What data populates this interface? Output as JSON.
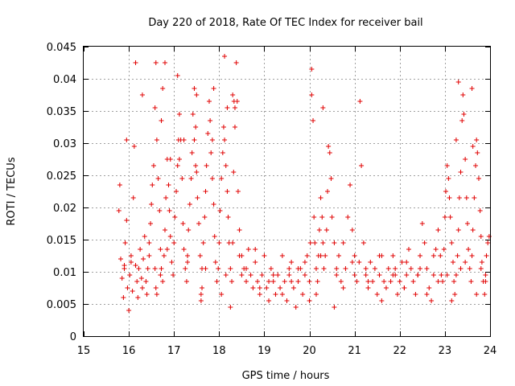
{
  "chart_data": {
    "type": "scatter",
    "title": "Day 220 of 2018, Rate Of TEC Index for receiver bail",
    "xlabel": "GPS time / hours",
    "ylabel": "ROTI / TECUs",
    "xlim": [
      15,
      24
    ],
    "ylim": [
      0,
      0.045
    ],
    "xticks": [
      15,
      16,
      17,
      18,
      19,
      20,
      21,
      22,
      23,
      24
    ],
    "xtick_labels": [
      "15",
      "16",
      "17",
      "18",
      "19",
      "20",
      "21",
      "22",
      "23",
      "24"
    ],
    "yticks": [
      0,
      0.005,
      0.01,
      0.015,
      0.02,
      0.025,
      0.03,
      0.035,
      0.04,
      0.045
    ],
    "ytick_labels": [
      "0",
      "0.005",
      "0.01",
      "0.015",
      "0.02",
      "0.025",
      "0.03",
      "0.035",
      "0.04",
      "0.045"
    ],
    "grid": true,
    "marker": "+",
    "color": "#e00000",
    "series": [
      {
        "name": "ROTI",
        "x": [
          15.78,
          15.8,
          15.82,
          15.85,
          15.88,
          15.9,
          15.92,
          15.95,
          15.97,
          16.0,
          16.02,
          16.05,
          16.08,
          16.1,
          16.12,
          16.15,
          16.18,
          16.2,
          16.22,
          16.25,
          16.28,
          16.3,
          16.32,
          16.35,
          16.38,
          16.4,
          16.42,
          16.45,
          16.48,
          16.5,
          16.52,
          16.55,
          16.58,
          16.6,
          16.62,
          16.65,
          16.68,
          16.7,
          16.72,
          16.75,
          16.78,
          16.8,
          16.82,
          16.85,
          16.88,
          16.9,
          16.92,
          16.95,
          16.98,
          17.0,
          17.02,
          17.05,
          17.08,
          17.1,
          17.12,
          17.15,
          17.18,
          17.2,
          17.22,
          17.25,
          17.28,
          17.3,
          17.32,
          17.35,
          17.38,
          17.4,
          17.42,
          17.45,
          17.48,
          17.5,
          17.52,
          17.55,
          17.58,
          17.6,
          17.62,
          17.65,
          17.68,
          17.7,
          17.72,
          17.75,
          17.78,
          17.8,
          17.82,
          17.85,
          17.88,
          17.9,
          17.92,
          17.95,
          17.98,
          18.0,
          18.02,
          18.05,
          18.08,
          18.1,
          18.12,
          18.15,
          18.18,
          18.2,
          18.22,
          18.25,
          18.28,
          18.3,
          18.32,
          18.35,
          18.38,
          18.4,
          18.42,
          18.45,
          18.5,
          18.55,
          18.6,
          18.65,
          18.7,
          18.75,
          18.8,
          18.85,
          18.9,
          18.95,
          19.0,
          19.05,
          19.1,
          19.15,
          19.2,
          19.25,
          19.3,
          19.35,
          19.4,
          19.45,
          19.5,
          19.55,
          19.6,
          19.65,
          19.7,
          19.75,
          19.8,
          19.85,
          19.9,
          19.95,
          20.0,
          20.02,
          20.05,
          20.08,
          20.1,
          20.12,
          20.15,
          20.18,
          20.2,
          20.22,
          20.25,
          20.28,
          20.3,
          20.32,
          20.35,
          20.38,
          20.4,
          20.42,
          20.45,
          20.48,
          20.5,
          20.55,
          20.6,
          20.65,
          20.7,
          20.75,
          20.8,
          20.85,
          20.9,
          20.95,
          21.0,
          21.05,
          21.1,
          21.15,
          21.2,
          21.25,
          21.3,
          21.35,
          21.4,
          21.45,
          21.5,
          21.55,
          21.6,
          21.65,
          21.7,
          21.75,
          21.8,
          21.85,
          21.9,
          21.95,
          22.0,
          22.05,
          22.1,
          22.15,
          22.2,
          22.25,
          22.3,
          22.35,
          22.4,
          22.45,
          22.5,
          22.55,
          22.6,
          22.65,
          22.7,
          22.75,
          22.8,
          22.85,
          22.9,
          22.92,
          22.95,
          22.98,
          23.0,
          23.02,
          23.05,
          23.08,
          23.1,
          23.12,
          23.15,
          23.18,
          23.2,
          23.22,
          23.25,
          23.28,
          23.3,
          23.32,
          23.35,
          23.38,
          23.4,
          23.42,
          23.45,
          23.48,
          23.5,
          23.52,
          23.55,
          23.58,
          23.6,
          23.62,
          23.65,
          23.68,
          23.7,
          23.72,
          23.75,
          23.78,
          23.8,
          23.82,
          23.85,
          23.88,
          23.9,
          23.92,
          23.95,
          23.98,
          16.58,
          16.6,
          16.62,
          16.7,
          16.75,
          16.8,
          17.08,
          17.12,
          17.45,
          17.48,
          17.5,
          17.85,
          17.88,
          18.12,
          18.18,
          18.3,
          18.33,
          18.35,
          15.95,
          16.15,
          20.05,
          20.3,
          21.12,
          23.25,
          23.3,
          23.6,
          23.62,
          16.3,
          16.72,
          16.92,
          17.22,
          17.6,
          17.62,
          17.95,
          18.05,
          18.25,
          18.5,
          18.6,
          18.9,
          19.1,
          19.4,
          19.6,
          19.75,
          20.0,
          20.15,
          20.55,
          20.75,
          21.0,
          21.3,
          21.6,
          21.9,
          22.1,
          22.4,
          22.6,
          22.85,
          23.15,
          23.35,
          23.7,
          23.9,
          15.9,
          16.05,
          16.45,
          16.85,
          17.3,
          17.7,
          18.15,
          18.45,
          18.8,
          19.2,
          19.55,
          19.9,
          20.25,
          20.6,
          20.95,
          21.25,
          21.55,
          21.85,
          22.15,
          22.45,
          22.75,
          23.05,
          23.45,
          23.8
        ],
        "y": [
          0.0195,
          0.0235,
          0.012,
          0.009,
          0.006,
          0.011,
          0.0145,
          0.018,
          0.0075,
          0.004,
          0.0095,
          0.0125,
          0.007,
          0.0215,
          0.0295,
          0.011,
          0.0085,
          0.006,
          0.0105,
          0.0135,
          0.009,
          0.0075,
          0.012,
          0.0155,
          0.0085,
          0.0065,
          0.0105,
          0.0145,
          0.0175,
          0.0205,
          0.0235,
          0.0265,
          0.0355,
          0.0425,
          0.0305,
          0.0245,
          0.0195,
          0.0135,
          0.0105,
          0.0085,
          0.0125,
          0.0165,
          0.0215,
          0.0275,
          0.0235,
          0.0195,
          0.0155,
          0.0115,
          0.0095,
          0.0145,
          0.0185,
          0.0225,
          0.0265,
          0.0305,
          0.0345,
          0.0305,
          0.0245,
          0.0175,
          0.0135,
          0.0105,
          0.0085,
          0.0125,
          0.0165,
          0.0205,
          0.0245,
          0.0285,
          0.0345,
          0.0385,
          0.0325,
          0.0255,
          0.0215,
          0.0175,
          0.0125,
          0.0055,
          0.0105,
          0.0145,
          0.0185,
          0.0225,
          0.0265,
          0.0315,
          0.0365,
          0.0335,
          0.0285,
          0.0245,
          0.0205,
          0.0155,
          0.0115,
          0.0085,
          0.0105,
          0.0145,
          0.0195,
          0.0245,
          0.0285,
          0.0325,
          0.0305,
          0.0265,
          0.0225,
          0.0185,
          0.0145,
          0.0105,
          0.0085,
          0.0145,
          0.0255,
          0.0355,
          0.0425,
          0.0365,
          0.0225,
          0.0165,
          0.0125,
          0.0105,
          0.0085,
          0.0135,
          0.0095,
          0.0075,
          0.0115,
          0.0085,
          0.0065,
          0.0095,
          0.0125,
          0.0075,
          0.0055,
          0.0105,
          0.0085,
          0.0065,
          0.0095,
          0.0075,
          0.0125,
          0.0085,
          0.0055,
          0.0095,
          0.0115,
          0.0075,
          0.0045,
          0.0085,
          0.0105,
          0.0065,
          0.0095,
          0.0125,
          0.0085,
          0.0145,
          0.0375,
          0.0335,
          0.0185,
          0.0145,
          0.0105,
          0.0085,
          0.0125,
          0.0165,
          0.0215,
          0.0185,
          0.0145,
          0.0105,
          0.0125,
          0.0165,
          0.0225,
          0.0295,
          0.0285,
          0.0245,
          0.0185,
          0.0145,
          0.0105,
          0.0125,
          0.0085,
          0.0145,
          0.0105,
          0.0185,
          0.0235,
          0.0165,
          0.0125,
          0.0085,
          0.0115,
          0.0265,
          0.0145,
          0.0095,
          0.0075,
          0.0115,
          0.0085,
          0.0105,
          0.0065,
          0.0095,
          0.0125,
          0.0085,
          0.0075,
          0.0105,
          0.0085,
          0.0125,
          0.0095,
          0.0065,
          0.0085,
          0.0115,
          0.0075,
          0.0095,
          0.0135,
          0.0105,
          0.0085,
          0.0065,
          0.0095,
          0.0125,
          0.0175,
          0.0145,
          0.0105,
          0.0075,
          0.0055,
          0.0095,
          0.0135,
          0.0165,
          0.0125,
          0.0095,
          0.0085,
          0.0135,
          0.0185,
          0.0225,
          0.0265,
          0.0245,
          0.0215,
          0.0185,
          0.0145,
          0.0115,
          0.0085,
          0.0065,
          0.0095,
          0.0125,
          0.0165,
          0.0215,
          0.0255,
          0.0335,
          0.0375,
          0.0345,
          0.0275,
          0.0215,
          0.0175,
          0.0135,
          0.0105,
          0.0085,
          0.0125,
          0.0165,
          0.0215,
          0.0265,
          0.0305,
          0.0285,
          0.0245,
          0.0195,
          0.0155,
          0.0115,
          0.0085,
          0.0065,
          0.0095,
          0.0125,
          0.0145,
          0.0155,
          0.0105,
          0.0075,
          0.0065,
          0.0095,
          0.0385,
          0.0425,
          0.0405,
          0.0275,
          0.0305,
          0.0265,
          0.0375,
          0.0305,
          0.0385,
          0.0435,
          0.0355,
          0.0375,
          0.0365,
          0.0325,
          0.0305,
          0.0425,
          0.0415,
          0.0355,
          0.0365,
          0.0305,
          0.0395,
          0.0385,
          0.0295,
          0.0375,
          0.0335,
          0.0275,
          0.0305,
          0.0065,
          0.0075,
          0.0085,
          0.0065,
          0.0045,
          0.0095,
          0.0105,
          0.0075,
          0.0085,
          0.0065,
          0.0085,
          0.0105,
          0.0055,
          0.0065,
          0.0045,
          0.0075,
          0.0095,
          0.0085,
          0.0055,
          0.0105,
          0.0075,
          0.0095,
          0.0065,
          0.0085,
          0.0055,
          0.0105,
          0.0065,
          0.0085,
          0.0105,
          0.0115,
          0.0125,
          0.0135,
          0.0115,
          0.0105,
          0.0095,
          0.0125,
          0.0135,
          0.0095,
          0.0105,
          0.0115,
          0.0125,
          0.0095,
          0.0115,
          0.0105,
          0.0125,
          0.0095,
          0.0115,
          0.0105,
          0.0125,
          0.0095,
          0.0115,
          0.0105
        ]
      }
    ]
  }
}
